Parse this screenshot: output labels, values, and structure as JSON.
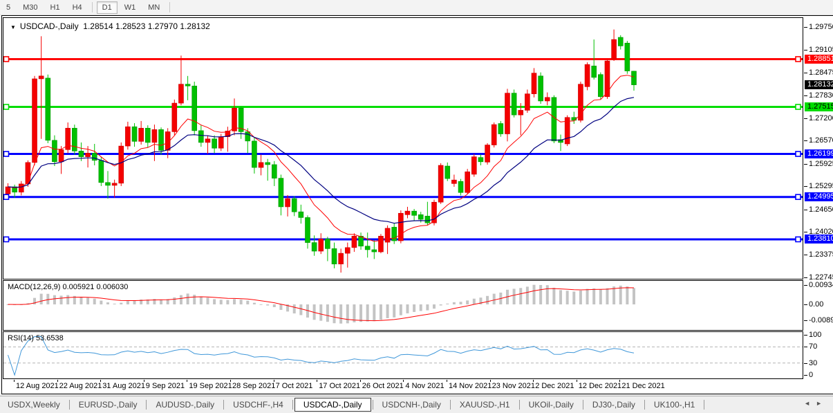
{
  "toolbar": {
    "timeframes": [
      {
        "label": "5",
        "active": false
      },
      {
        "label": "M30",
        "active": false
      },
      {
        "label": "H1",
        "active": false
      },
      {
        "label": "H4",
        "active": false
      },
      {
        "label": "|",
        "sep": true
      },
      {
        "label": "D1",
        "active": true
      },
      {
        "label": "W1",
        "active": false
      },
      {
        "label": "MN",
        "active": false
      },
      {
        "label": "|",
        "sep": true
      }
    ]
  },
  "chart": {
    "title": {
      "dropdown_icon": "▼",
      "symbol": "USDCAD-,Daily",
      "ohlc_text": "1.28514 1.28523 1.27970 1.28132"
    },
    "price_axis_ticks": [
      "1.29750",
      "1.29105",
      "1.28475",
      "1.27830",
      "1.27200",
      "1.26570",
      "1.25925",
      "1.25295",
      "1.24650",
      "1.24020",
      "1.23375",
      "1.22745"
    ],
    "current_price": {
      "label": "1.28132",
      "price": 1.28132,
      "bg": "#000000",
      "fg": "#ffffff"
    }
  },
  "chart_data": {
    "type": "candlestick",
    "symbol": "USDCAD",
    "timeframe": "Daily",
    "ohlc_display": [
      "1.28514",
      "1.28523",
      "1.27970",
      "1.28132"
    ],
    "colors": {
      "up": "#f40000",
      "down": "#00c000",
      "up_stroke": "#cc0000",
      "down_stroke": "#009600",
      "ma_fast": "#ff0000",
      "ma_slow": "#000080"
    },
    "ma_periods": {
      "fast": 10,
      "slow": 21
    },
    "hlines": [
      {
        "price": 1.28851,
        "label": "1.28851",
        "color": "#ff0000",
        "text": "#ffffff"
      },
      {
        "price": 1.27515,
        "label": "1.27515",
        "color": "#00dd00",
        "text": "#000000"
      },
      {
        "price": 1.26199,
        "label": "1.26199",
        "color": "#0000ff",
        "text": "#ffffff"
      },
      {
        "price": 1.24995,
        "label": "1.24995",
        "color": "#0000ff",
        "text": "#ffffff"
      },
      {
        "price": 1.2381,
        "label": "1.23810",
        "color": "#0000ff",
        "text": "#ffffff"
      }
    ],
    "candles": [
      [
        1.2508,
        1.2538,
        1.2494,
        1.2528
      ],
      [
        1.2528,
        1.2534,
        1.2498,
        1.2513
      ],
      [
        1.2513,
        1.2544,
        1.2504,
        1.2536
      ],
      [
        1.2536,
        1.2602,
        1.2528,
        1.2596
      ],
      [
        1.2596,
        1.2838,
        1.2588,
        1.283
      ],
      [
        1.283,
        1.2949,
        1.2662,
        1.2838
      ],
      [
        1.2832,
        1.2842,
        1.265,
        1.2658
      ],
      [
        1.2658,
        1.2672,
        1.2586,
        1.2598
      ],
      [
        1.2598,
        1.2642,
        1.2564,
        1.2632
      ],
      [
        1.2632,
        1.2708,
        1.2622,
        1.2692
      ],
      [
        1.2692,
        1.2702,
        1.2618,
        1.2628
      ],
      [
        1.2628,
        1.2652,
        1.26,
        1.2612
      ],
      [
        1.2612,
        1.2642,
        1.2582,
        1.2622
      ],
      [
        1.2622,
        1.2648,
        1.2588,
        1.2602
      ],
      [
        1.2602,
        1.2612,
        1.253,
        1.254
      ],
      [
        1.254,
        1.2572,
        1.2495,
        1.2532
      ],
      [
        1.2532,
        1.2548,
        1.2498,
        1.2538
      ],
      [
        1.2538,
        1.2652,
        1.253,
        1.2642
      ],
      [
        1.2642,
        1.271,
        1.2632,
        1.2696
      ],
      [
        1.2696,
        1.2706,
        1.264,
        1.2655
      ],
      [
        1.2655,
        1.2712,
        1.2646,
        1.2692
      ],
      [
        1.2692,
        1.27,
        1.2638,
        1.2652
      ],
      [
        1.2652,
        1.2702,
        1.26,
        1.2688
      ],
      [
        1.2688,
        1.2694,
        1.2618,
        1.263
      ],
      [
        1.263,
        1.2692,
        1.2608,
        1.2682
      ],
      [
        1.2682,
        1.2772,
        1.2672,
        1.2762
      ],
      [
        1.2762,
        1.2895,
        1.2756,
        1.2815
      ],
      [
        1.2815,
        1.2838,
        1.277,
        1.281
      ],
      [
        1.281,
        1.2822,
        1.2672,
        1.2685
      ],
      [
        1.2685,
        1.27,
        1.264,
        1.2652
      ],
      [
        1.2652,
        1.2672,
        1.262,
        1.2662
      ],
      [
        1.2662,
        1.2672,
        1.2622,
        1.2636
      ],
      [
        1.2636,
        1.2676,
        1.2628,
        1.2668
      ],
      [
        1.2668,
        1.2696,
        1.2626,
        1.2684
      ],
      [
        1.2684,
        1.2775,
        1.2672,
        1.2748
      ],
      [
        1.2748,
        1.2752,
        1.2662,
        1.2682
      ],
      [
        1.2682,
        1.2692,
        1.2622,
        1.2656
      ],
      [
        1.2656,
        1.2666,
        1.2565,
        1.2582
      ],
      [
        1.2582,
        1.2618,
        1.256,
        1.2596
      ],
      [
        1.2596,
        1.2606,
        1.2545,
        1.259
      ],
      [
        1.259,
        1.26,
        1.253,
        1.2552
      ],
      [
        1.2552,
        1.2562,
        1.2448,
        1.2472
      ],
      [
        1.2472,
        1.2505,
        1.2445,
        1.2495
      ],
      [
        1.2495,
        1.2502,
        1.2446,
        1.2458
      ],
      [
        1.2458,
        1.2478,
        1.2425,
        1.2442
      ],
      [
        1.2442,
        1.2448,
        1.2355,
        1.2372
      ],
      [
        1.2372,
        1.2392,
        1.2335,
        1.2348
      ],
      [
        1.2348,
        1.2398,
        1.234,
        1.2382
      ],
      [
        1.2382,
        1.2388,
        1.232,
        1.2355
      ],
      [
        1.2355,
        1.2372,
        1.23,
        1.2312
      ],
      [
        1.2312,
        1.2355,
        1.2288,
        1.2342
      ],
      [
        1.2342,
        1.2372,
        1.2302,
        1.2358
      ],
      [
        1.2358,
        1.2398,
        1.2346,
        1.239
      ],
      [
        1.239,
        1.24,
        1.2352,
        1.2362
      ],
      [
        1.2362,
        1.24,
        1.233,
        1.2352
      ],
      [
        1.2352,
        1.2378,
        1.2326,
        1.2346
      ],
      [
        1.2346,
        1.2396,
        1.2342,
        1.239
      ],
      [
        1.2373,
        1.242,
        1.234,
        1.2412
      ],
      [
        1.2415,
        1.2426,
        1.2368,
        1.2377
      ],
      [
        1.2377,
        1.2462,
        1.237,
        1.2454
      ],
      [
        1.245,
        1.2472,
        1.244,
        1.246
      ],
      [
        1.246,
        1.2466,
        1.2434,
        1.2448
      ],
      [
        1.245,
        1.2458,
        1.2428,
        1.2437
      ],
      [
        1.2446,
        1.2486,
        1.242,
        1.2427
      ],
      [
        1.2427,
        1.2492,
        1.242,
        1.2485
      ],
      [
        1.2485,
        1.2594,
        1.248,
        1.2588
      ],
      [
        1.2586,
        1.2596,
        1.2544,
        1.2551
      ],
      [
        1.2537,
        1.2562,
        1.2528,
        1.2547
      ],
      [
        1.2543,
        1.255,
        1.2504,
        1.2512
      ],
      [
        1.2512,
        1.2578,
        1.2508,
        1.257
      ],
      [
        1.2563,
        1.262,
        1.2556,
        1.2612
      ],
      [
        1.261,
        1.2618,
        1.2588,
        1.2598
      ],
      [
        1.2597,
        1.265,
        1.259,
        1.2645
      ],
      [
        1.2645,
        1.2708,
        1.2638,
        1.2702
      ],
      [
        1.2705,
        1.2712,
        1.2668,
        1.2676
      ],
      [
        1.2676,
        1.2802,
        1.2655,
        1.279
      ],
      [
        1.279,
        1.28,
        1.2722,
        1.2729
      ],
      [
        1.2729,
        1.2762,
        1.2672,
        1.2742
      ],
      [
        1.2742,
        1.28,
        1.2735,
        1.2788
      ],
      [
        1.2788,
        1.286,
        1.2778,
        1.2846
      ],
      [
        1.2838,
        1.2848,
        1.276,
        1.2768
      ],
      [
        1.2768,
        1.2792,
        1.2756,
        1.2778
      ],
      [
        1.2778,
        1.2784,
        1.265,
        1.2656
      ],
      [
        1.266,
        1.2674,
        1.2628,
        1.2652
      ],
      [
        1.2648,
        1.2728,
        1.2642,
        1.2722
      ],
      [
        1.2722,
        1.2738,
        1.2704,
        1.2714
      ],
      [
        1.2714,
        1.2822,
        1.2708,
        1.2815
      ],
      [
        1.2808,
        1.2876,
        1.2798,
        1.287
      ],
      [
        1.2866,
        1.294,
        1.2828,
        1.2834
      ],
      [
        1.2842,
        1.2848,
        1.2772,
        1.278
      ],
      [
        1.278,
        1.2886,
        1.2774,
        1.288
      ],
      [
        1.2886,
        1.2968,
        1.288,
        1.294
      ],
      [
        1.2946,
        1.2952,
        1.2912,
        1.2922
      ],
      [
        1.293,
        1.2936,
        1.2844,
        1.2852
      ],
      [
        1.28514,
        1.28523,
        1.2797,
        1.28132
      ]
    ]
  },
  "macd": {
    "label": "MACD(12,26,9)",
    "value_macd": "0.005921",
    "value_signal": "0.006030",
    "axis_ticks": [
      "0.009345",
      "0.00",
      "-0.00890"
    ],
    "params": {
      "fast": 12,
      "slow": 26,
      "signal": 9
    },
    "hist_color": "#c4c4c4",
    "signal_color": "#ff0000"
  },
  "rsi": {
    "label": "RSI(14)",
    "value": "53.6538",
    "axis_ticks": [
      "100",
      "70",
      "30",
      "0"
    ],
    "levels": [
      70,
      30
    ],
    "period": 14,
    "line_color": "#3f97d9",
    "level_color": "#b4b4b4"
  },
  "time_axis": {
    "labels": [
      "12 Aug 2021",
      "22 Aug 2021",
      "31 Aug 2021",
      "9 Sep 2021",
      "19 Sep 2021",
      "28 Sep 2021",
      "7 Oct 2021",
      "17 Oct 2021",
      "26 Oct 2021",
      "4 Nov 2021",
      "14 Nov 2021",
      "23 Nov 2021",
      "2 Dec 2021",
      "12 Dec 2021",
      "21 Dec 2021"
    ]
  },
  "tabs": {
    "items": [
      {
        "label": "USDX,Weekly",
        "active": false
      },
      {
        "label": "EURUSD-,Daily",
        "active": false
      },
      {
        "label": "AUDUSD-,Daily",
        "active": false
      },
      {
        "label": "USDCHF-,H4",
        "active": false
      },
      {
        "label": "USDCAD-,Daily",
        "active": true
      },
      {
        "label": "USDCNH-,Daily",
        "active": false
      },
      {
        "label": "XAUUSD-,H1",
        "active": false
      },
      {
        "label": "UKOil-,Daily",
        "active": false
      },
      {
        "label": "DJ30-,Daily",
        "active": false
      },
      {
        "label": "UK100-,H1",
        "active": false
      }
    ],
    "nav_left": "◄",
    "nav_right": "►"
  }
}
